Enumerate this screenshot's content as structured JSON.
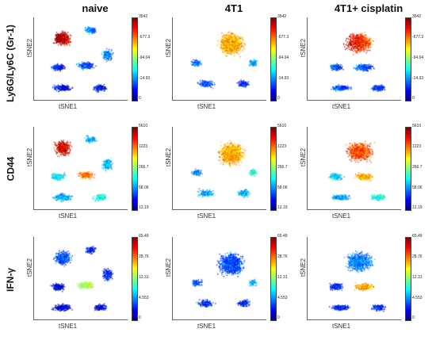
{
  "columns": [
    "naive",
    "4T1",
    "4T1+ cisplatin"
  ],
  "rows": [
    {
      "label": "Ly6G/Ly6C (Gr-1)",
      "ticks": [
        "3542",
        "-677.3",
        "-94.04",
        "-14.93",
        "0"
      ]
    },
    {
      "label": "CD44",
      "ticks": [
        "5610",
        "1223",
        "266.7",
        "58.06",
        "12.19"
      ]
    },
    {
      "label": "IFN-γ",
      "ticks": [
        "65.49",
        "28.76",
        "12.31",
        "4.553",
        "0"
      ]
    }
  ],
  "axes": {
    "x_label": "tSNE1",
    "y_label": "tSNE2"
  },
  "palette": {
    "low": "#00007f",
    "mid": "#00ffff",
    "high": "#ff0000"
  }
}
